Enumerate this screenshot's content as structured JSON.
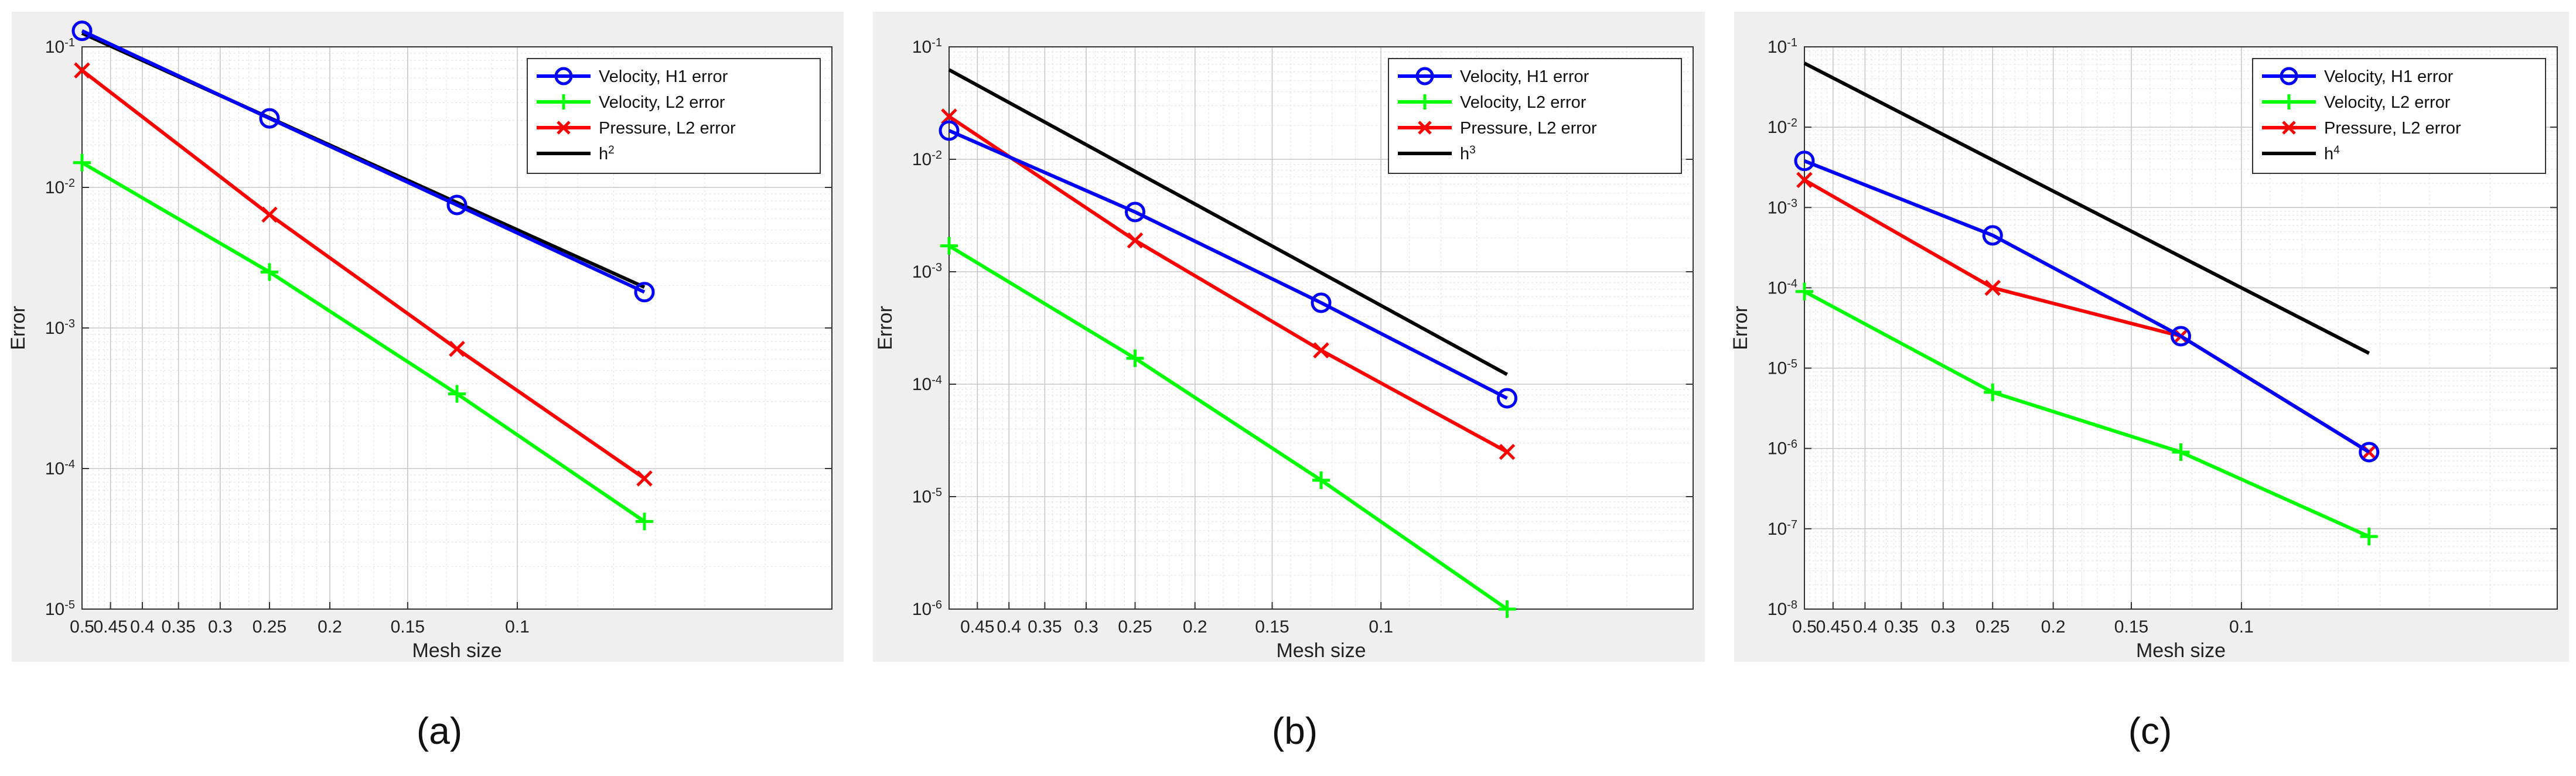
{
  "chart_data": [
    {
      "type": "line",
      "caption": "(a)",
      "xlabel": "Mesh size",
      "ylabel": "Error",
      "xscale": "log",
      "yscale": "log",
      "xlim": [
        0.03125,
        0.5
      ],
      "ylim": [
        1e-05,
        0.1
      ],
      "x_ticks": [
        0.5,
        0.45,
        0.4,
        0.35,
        0.3,
        0.25,
        0.2,
        0.15,
        0.1
      ],
      "x_tick_labels": [
        "0.5",
        "0.45",
        "0.4",
        "0.35",
        "0.3",
        "0.25",
        "0.2",
        "0.15",
        "0.1"
      ],
      "y_ticks": [
        1e-05,
        0.0001,
        0.001,
        0.01,
        0.1
      ],
      "y_tick_labels": [
        "10^-5",
        "10^-4",
        "10^-3",
        "10^-2",
        "10^-1"
      ],
      "grid": true,
      "legend_position": "top-right",
      "x": [
        0.5,
        0.25,
        0.125,
        0.0625
      ],
      "series": [
        {
          "name": "Velocity, H1 error",
          "color": "#0000ff",
          "marker": "circle",
          "values": [
            0.13,
            0.031,
            0.0075,
            0.0018
          ]
        },
        {
          "name": "Velocity, L2 error",
          "color": "#00ff00",
          "marker": "plus",
          "values": [
            0.015,
            0.0025,
            0.00034,
            4.2e-05
          ]
        },
        {
          "name": "Pressure, L2 error",
          "color": "#ff0000",
          "marker": "x",
          "values": [
            0.068,
            0.0064,
            0.00071,
            8.5e-05
          ]
        },
        {
          "name": "h^2",
          "color": "#000000",
          "marker": "none",
          "values": [
            0.125,
            0.0313,
            0.0078,
            0.00195
          ]
        }
      ]
    },
    {
      "type": "line",
      "caption": "(b)",
      "xlabel": "Mesh size",
      "ylabel": "Error",
      "xscale": "log",
      "yscale": "log",
      "xlim": [
        0.03125,
        0.5
      ],
      "ylim": [
        1e-06,
        0.1
      ],
      "x_ticks": [
        0.45,
        0.4,
        0.35,
        0.3,
        0.25,
        0.2,
        0.15,
        0.1
      ],
      "x_tick_labels": [
        "0.45",
        "0.4",
        "0.35",
        "0.3",
        "0.25",
        "0.2",
        "0.15",
        "0.1"
      ],
      "y_ticks": [
        1e-06,
        1e-05,
        0.0001,
        0.001,
        0.01,
        0.1
      ],
      "y_tick_labels": [
        "10^-6",
        "10^-5",
        "10^-4",
        "10^-3",
        "10^-2",
        "10^-1"
      ],
      "grid": true,
      "legend_position": "top-right",
      "x": [
        0.5,
        0.25,
        0.125,
        0.0625
      ],
      "series": [
        {
          "name": "Velocity, H1 error",
          "color": "#0000ff",
          "marker": "circle",
          "values": [
            0.018,
            0.0034,
            0.00053,
            7.5e-05
          ]
        },
        {
          "name": "Velocity, L2 error",
          "color": "#00ff00",
          "marker": "plus",
          "values": [
            0.0017,
            0.00017,
            1.4e-05,
            1e-06
          ]
        },
        {
          "name": "Pressure, L2 error",
          "color": "#ff0000",
          "marker": "x",
          "values": [
            0.024,
            0.0019,
            0.0002,
            2.5e-05
          ]
        },
        {
          "name": "h^3",
          "color": "#000000",
          "marker": "none",
          "values": [
            0.0625,
            0.0078,
            0.00098,
            0.000122
          ]
        }
      ]
    },
    {
      "type": "line",
      "caption": "(c)",
      "xlabel": "Mesh size",
      "ylabel": "Error",
      "xscale": "log",
      "yscale": "log",
      "xlim": [
        0.03125,
        0.5
      ],
      "ylim": [
        1e-08,
        0.1
      ],
      "x_ticks": [
        0.5,
        0.45,
        0.4,
        0.35,
        0.3,
        0.25,
        0.2,
        0.15,
        0.1
      ],
      "x_tick_labels": [
        "0.5",
        "0.45",
        "0.4",
        "0.35",
        "0.3",
        "0.25",
        "0.2",
        "0.15",
        "0.1"
      ],
      "y_ticks": [
        1e-08,
        1e-07,
        1e-06,
        1e-05,
        0.0001,
        0.001,
        0.01,
        0.1
      ],
      "y_tick_labels": [
        "10^-8",
        "10^-7",
        "10^-6",
        "10^-5",
        "10^-4",
        "10^-3",
        "10^-2",
        "10^-1"
      ],
      "grid": true,
      "legend_position": "top-right",
      "x": [
        0.5,
        0.25,
        0.125,
        0.0625
      ],
      "series": [
        {
          "name": "Velocity, H1 error",
          "color": "#0000ff",
          "marker": "circle",
          "values": [
            0.0038,
            0.00045,
            2.5e-05,
            9e-07
          ]
        },
        {
          "name": "Velocity, L2 error",
          "color": "#00ff00",
          "marker": "plus",
          "values": [
            9e-05,
            5e-06,
            9e-07,
            8e-08
          ]
        },
        {
          "name": "Pressure, L2 error",
          "color": "#ff0000",
          "marker": "x",
          "values": [
            0.0022,
            0.0001,
            2.5e-05,
            9e-07
          ]
        },
        {
          "name": "h^4",
          "color": "#000000",
          "marker": "none",
          "values": [
            0.0625,
            0.0039,
            0.000244,
            1.53e-05
          ]
        }
      ]
    }
  ]
}
